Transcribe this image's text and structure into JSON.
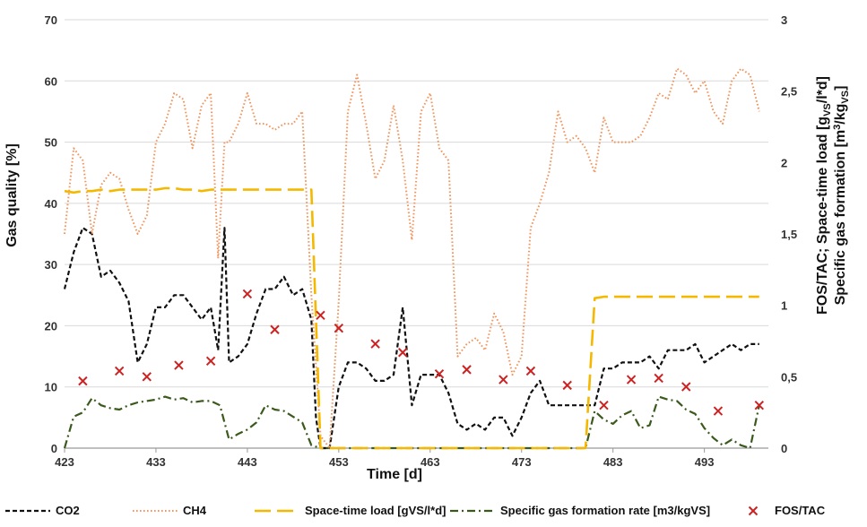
{
  "chart_data": {
    "type": "line",
    "x_label": "Time [d]",
    "y_label_left": "Gas quality [%]",
    "y_label_right_1": "FOS/TAC; Space-time load [g",
    "y_label_right_1_sub": "VS",
    "y_label_right_1_end": "/l*d]",
    "y_label_right_2": "Specific gas formation [m",
    "y_label_right_2_sup": "3",
    "y_label_right_2_mid": "/kg",
    "y_label_right_2_sub": "VS",
    "y_label_right_2_end": "]",
    "x_range": [
      423,
      500
    ],
    "x_ticks": [
      423,
      433,
      443,
      453,
      463,
      473,
      483,
      493
    ],
    "y_left_range": [
      0,
      70
    ],
    "y_left_ticks": [
      0,
      10,
      20,
      30,
      40,
      50,
      60,
      70
    ],
    "y_right_range": [
      0,
      3
    ],
    "y_right_ticks": [
      "0",
      "0,5",
      "1",
      "1,5",
      "2",
      "2,5",
      "3"
    ],
    "grid": "horizontal",
    "legend_position": "bottom",
    "series": [
      {
        "name": "CO2",
        "axis": "left",
        "color": "#111111",
        "style": "dashed",
        "points": [
          [
            423,
            26
          ],
          [
            424,
            32
          ],
          [
            425,
            36
          ],
          [
            426,
            35
          ],
          [
            427,
            28
          ],
          [
            428,
            29
          ],
          [
            429,
            27
          ],
          [
            430,
            24
          ],
          [
            431,
            14
          ],
          [
            432,
            17
          ],
          [
            433,
            23
          ],
          [
            434,
            23
          ],
          [
            435,
            25
          ],
          [
            436,
            25
          ],
          [
            437,
            23
          ],
          [
            438,
            21
          ],
          [
            439,
            23
          ],
          [
            439.8,
            16
          ],
          [
            440.5,
            36
          ],
          [
            441,
            14
          ],
          [
            442,
            15
          ],
          [
            443,
            17
          ],
          [
            444,
            22
          ],
          [
            445,
            26
          ],
          [
            446,
            26
          ],
          [
            447,
            28
          ],
          [
            448,
            25
          ],
          [
            449,
            26
          ],
          [
            450,
            21
          ],
          [
            450.5,
            5
          ],
          [
            451,
            0
          ],
          [
            452,
            0
          ],
          [
            453,
            10
          ],
          [
            454,
            14
          ],
          [
            455,
            14
          ],
          [
            456,
            13
          ],
          [
            457,
            11
          ],
          [
            458,
            11
          ],
          [
            459,
            12
          ],
          [
            460,
            23
          ],
          [
            461,
            7
          ],
          [
            462,
            12
          ],
          [
            463,
            12
          ],
          [
            464,
            12
          ],
          [
            465,
            9
          ],
          [
            466,
            4
          ],
          [
            467,
            3
          ],
          [
            468,
            4
          ],
          [
            469,
            3
          ],
          [
            470,
            5
          ],
          [
            471,
            5
          ],
          [
            472,
            2
          ],
          [
            473,
            5
          ],
          [
            474,
            9
          ],
          [
            475,
            11
          ],
          [
            476,
            7
          ],
          [
            477,
            7
          ],
          [
            478,
            7
          ],
          [
            479,
            7
          ],
          [
            480,
            7
          ],
          [
            481,
            7
          ],
          [
            482,
            13
          ],
          [
            483,
            13
          ],
          [
            484,
            14
          ],
          [
            485,
            14
          ],
          [
            486,
            14
          ],
          [
            487,
            15
          ],
          [
            488,
            13
          ],
          [
            489,
            16
          ],
          [
            490,
            16
          ],
          [
            491,
            16
          ],
          [
            492,
            17
          ],
          [
            493,
            14
          ],
          [
            494,
            15
          ],
          [
            495,
            16
          ],
          [
            496,
            17
          ],
          [
            497,
            16
          ],
          [
            498,
            17
          ],
          [
            499,
            17
          ]
        ]
      },
      {
        "name": "CH4",
        "axis": "left",
        "color": "#f0955e",
        "style": "dotted",
        "points": [
          [
            423,
            35
          ],
          [
            424,
            49
          ],
          [
            425,
            47
          ],
          [
            426,
            35
          ],
          [
            427,
            43
          ],
          [
            428,
            45
          ],
          [
            429,
            44
          ],
          [
            430,
            39
          ],
          [
            431,
            35
          ],
          [
            432,
            38
          ],
          [
            433,
            50
          ],
          [
            434,
            53
          ],
          [
            435,
            58
          ],
          [
            436,
            57
          ],
          [
            437,
            49
          ],
          [
            438,
            56
          ],
          [
            439,
            58
          ],
          [
            439.8,
            31
          ],
          [
            440.5,
            50
          ],
          [
            441,
            50
          ],
          [
            442,
            53
          ],
          [
            443,
            58
          ],
          [
            444,
            53
          ],
          [
            445,
            53
          ],
          [
            446,
            52
          ],
          [
            447,
            53
          ],
          [
            448,
            53
          ],
          [
            449,
            55
          ],
          [
            450,
            25
          ],
          [
            451,
            2
          ],
          [
            452,
            0
          ],
          [
            453,
            24
          ],
          [
            454,
            55
          ],
          [
            455,
            61
          ],
          [
            456,
            53
          ],
          [
            457,
            44
          ],
          [
            458,
            47
          ],
          [
            459,
            56
          ],
          [
            460,
            47
          ],
          [
            461,
            34
          ],
          [
            462,
            55
          ],
          [
            463,
            58
          ],
          [
            464,
            49
          ],
          [
            465,
            47
          ],
          [
            466,
            15
          ],
          [
            467,
            17
          ],
          [
            468,
            18
          ],
          [
            469,
            16
          ],
          [
            470,
            22
          ],
          [
            471,
            19
          ],
          [
            472,
            12
          ],
          [
            473,
            15
          ],
          [
            474,
            36
          ],
          [
            475,
            40
          ],
          [
            476,
            45
          ],
          [
            477,
            55
          ],
          [
            478,
            50
          ],
          [
            479,
            51
          ],
          [
            480,
            49
          ],
          [
            481,
            45
          ],
          [
            482,
            54
          ],
          [
            483,
            50
          ],
          [
            484,
            50
          ],
          [
            485,
            50
          ],
          [
            486,
            51
          ],
          [
            487,
            54
          ],
          [
            488,
            58
          ],
          [
            489,
            57
          ],
          [
            490,
            62
          ],
          [
            491,
            61
          ],
          [
            492,
            58
          ],
          [
            493,
            60
          ],
          [
            494,
            55
          ],
          [
            495,
            53
          ],
          [
            496,
            60
          ],
          [
            497,
            62
          ],
          [
            498,
            61
          ],
          [
            499,
            55
          ]
        ]
      },
      {
        "name": "Space-time load [gVS/l*d]",
        "axis": "right",
        "color": "#f5b800",
        "style": "longdash",
        "points": [
          [
            423,
            1.8
          ],
          [
            424,
            1.79
          ],
          [
            425,
            1.8
          ],
          [
            426,
            1.8
          ],
          [
            427,
            1.81
          ],
          [
            428,
            1.8
          ],
          [
            429,
            1.81
          ],
          [
            430,
            1.81
          ],
          [
            431,
            1.81
          ],
          [
            432,
            1.81
          ],
          [
            433,
            1.81
          ],
          [
            434,
            1.82
          ],
          [
            435,
            1.82
          ],
          [
            436,
            1.81
          ],
          [
            437,
            1.81
          ],
          [
            438,
            1.8
          ],
          [
            439,
            1.81
          ],
          [
            440,
            1.81
          ],
          [
            441,
            1.81
          ],
          [
            442,
            1.81
          ],
          [
            443,
            1.81
          ],
          [
            444,
            1.81
          ],
          [
            445,
            1.81
          ],
          [
            446,
            1.81
          ],
          [
            447,
            1.81
          ],
          [
            448,
            1.81
          ],
          [
            449,
            1.81
          ],
          [
            450,
            1.81
          ],
          [
            451,
            0
          ],
          [
            452,
            0
          ],
          [
            453,
            0
          ],
          [
            463,
            0
          ],
          [
            473,
            0
          ],
          [
            480,
            0
          ],
          [
            481,
            1.05
          ],
          [
            482,
            1.06
          ],
          [
            483,
            1.06
          ],
          [
            490,
            1.06
          ],
          [
            499,
            1.06
          ]
        ]
      },
      {
        "name": "Specific gas formation rate [m3/kgVS]",
        "axis": "right",
        "color": "#3a5a1c",
        "style": "dashdot",
        "points": [
          [
            423,
            0
          ],
          [
            424,
            0.22
          ],
          [
            425,
            0.25
          ],
          [
            426,
            0.35
          ],
          [
            427,
            0.3
          ],
          [
            428,
            0.28
          ],
          [
            429,
            0.27
          ],
          [
            430,
            0.3
          ],
          [
            431,
            0.32
          ],
          [
            432,
            0.33
          ],
          [
            433,
            0.34
          ],
          [
            434,
            0.36
          ],
          [
            435,
            0.34
          ],
          [
            436,
            0.35
          ],
          [
            437,
            0.32
          ],
          [
            438,
            0.33
          ],
          [
            439,
            0.33
          ],
          [
            440,
            0.3
          ],
          [
            441,
            0.06
          ],
          [
            442,
            0.1
          ],
          [
            443,
            0.13
          ],
          [
            444,
            0.18
          ],
          [
            445,
            0.3
          ],
          [
            446,
            0.27
          ],
          [
            447,
            0.26
          ],
          [
            448,
            0.22
          ],
          [
            449,
            0.18
          ],
          [
            450,
            0.02
          ],
          [
            451,
            0
          ],
          [
            452,
            0
          ],
          [
            453,
            0
          ],
          [
            463,
            0
          ],
          [
            473,
            0
          ],
          [
            480,
            0
          ],
          [
            481,
            0.26
          ],
          [
            482,
            0.2
          ],
          [
            483,
            0.17
          ],
          [
            484,
            0.23
          ],
          [
            485,
            0.26
          ],
          [
            486,
            0.14
          ],
          [
            487,
            0.16
          ],
          [
            488,
            0.36
          ],
          [
            489,
            0.34
          ],
          [
            490,
            0.33
          ],
          [
            491,
            0.27
          ],
          [
            492,
            0.24
          ],
          [
            493,
            0.14
          ],
          [
            494,
            0.07
          ],
          [
            495,
            0.02
          ],
          [
            496,
            0.06
          ],
          [
            497,
            0.02
          ],
          [
            498,
            0
          ],
          [
            499,
            0.3
          ]
        ]
      },
      {
        "name": "FOS/TAC",
        "axis": "right",
        "color": "#cc2222",
        "style": "marker-x",
        "points": [
          [
            425,
            0.47
          ],
          [
            429,
            0.54
          ],
          [
            432,
            0.5
          ],
          [
            435.5,
            0.58
          ],
          [
            439,
            0.61
          ],
          [
            443,
            1.08
          ],
          [
            446,
            0.83
          ],
          [
            451,
            0.93
          ],
          [
            453,
            0.84
          ],
          [
            457,
            0.73
          ],
          [
            460,
            0.67
          ],
          [
            464,
            0.52
          ],
          [
            467,
            0.55
          ],
          [
            471,
            0.48
          ],
          [
            474,
            0.54
          ],
          [
            478,
            0.44
          ],
          [
            482,
            0.3
          ],
          [
            485,
            0.48
          ],
          [
            488,
            0.49
          ],
          [
            491,
            0.43
          ],
          [
            494.5,
            0.26
          ],
          [
            499,
            0.3
          ]
        ]
      }
    ]
  },
  "legend": [
    {
      "label": "CO2",
      "series": 0
    },
    {
      "label": "CH4",
      "series": 1
    },
    {
      "label": "Space-time load [gVS/l*d]",
      "series": 2
    },
    {
      "label": "Specific gas formation rate [m3/kgVS]",
      "series": 3
    },
    {
      "label": "FOS/TAC",
      "series": 4
    }
  ]
}
